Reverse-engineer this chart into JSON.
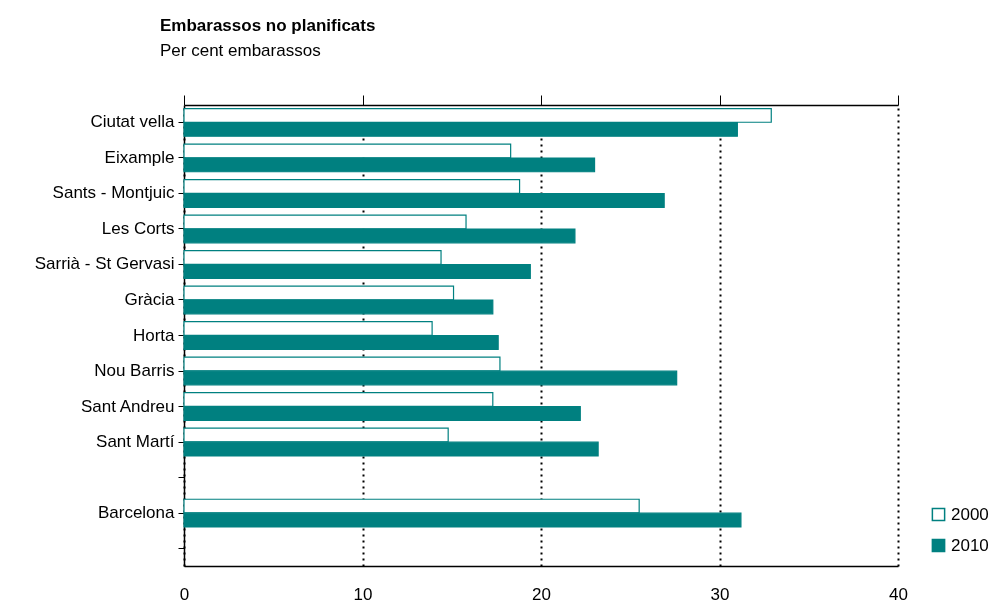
{
  "chart_data": {
    "type": "bar",
    "orientation": "horizontal",
    "title": "Embarassos no planificats",
    "subtitle": "Per cent embarassos",
    "categories": [
      "Ciutat vella",
      "Eixample",
      "Sants - Montjuic",
      "Les Corts",
      "Sarrià - St Gervasi",
      "Gràcia",
      "Horta",
      "Nou Barris",
      "Sant Andreu",
      "Sant Martí",
      null,
      "Barcelona",
      null
    ],
    "series": [
      {
        "name": "2000",
        "color": "#008080",
        "values": [
          32.9,
          18.3,
          18.8,
          15.8,
          14.4,
          15.1,
          13.9,
          17.7,
          17.3,
          14.8,
          null,
          25.5,
          null
        ]
      },
      {
        "name": "2010",
        "color": "#008080",
        "values": [
          31.0,
          23.0,
          26.9,
          21.9,
          19.4,
          17.3,
          17.6,
          27.6,
          22.2,
          23.2,
          null,
          31.2,
          null
        ]
      }
    ],
    "xlim": [
      0,
      40
    ],
    "xticks": [
      0,
      10,
      20,
      30,
      40
    ],
    "grid": "x",
    "legend": "bottom right"
  }
}
